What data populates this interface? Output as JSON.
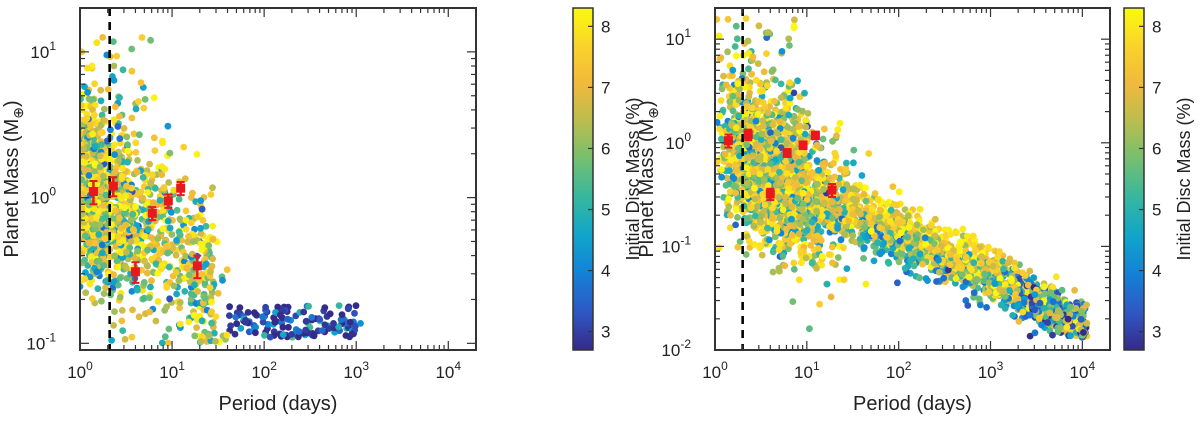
{
  "colors": {
    "axis": "#333333",
    "marker": "#e8191c",
    "cutoff_line": "#000000",
    "colormap": [
      "#352a87",
      "#2f58c4",
      "#1481d6",
      "#10a5ca",
      "#35b7a0",
      "#73bf71",
      "#b9bd4f",
      "#f0b93c",
      "#fad32a",
      "#f9fb0e"
    ]
  },
  "chart_data": [
    {
      "type": "scatter",
      "title": "",
      "xlabel": "Period (days)",
      "ylabel": {
        "base": "Planet Mass (M",
        "sub": "⊕",
        "close": ")"
      },
      "xscale": "log",
      "yscale": "log",
      "xlim": [
        1,
        20000
      ],
      "ylim": [
        0.09,
        20
      ],
      "xticks": [
        1,
        10,
        100,
        1000,
        10000
      ],
      "xtick_labels": [
        {
          "base": "10",
          "exp": "0"
        },
        {
          "base": "10",
          "exp": "1"
        },
        {
          "base": "10",
          "exp": "2"
        },
        {
          "base": "10",
          "exp": "3"
        },
        {
          "base": "10",
          "exp": "4"
        }
      ],
      "yticks": [
        0.1,
        1,
        10
      ],
      "ytick_labels": [
        {
          "base": "10",
          "exp": "-1"
        },
        {
          "base": "10",
          "exp": "0"
        },
        {
          "base": "10",
          "exp": "1"
        }
      ],
      "cutoff_period": 2.1,
      "colorbar": {
        "label": "Initial Disc Mass (%)",
        "range": [
          2.7,
          8.3
        ],
        "ticks": [
          3,
          4,
          5,
          6,
          7,
          8
        ],
        "tick_labels": [
          "3",
          "4",
          "5",
          "6",
          "7",
          "8"
        ]
      },
      "observed": [
        {
          "period": 1.4,
          "mass": 1.1,
          "err": 0.2
        },
        {
          "period": 2.3,
          "mass": 1.2,
          "err": 0.18
        },
        {
          "period": 4.0,
          "mass": 0.31,
          "err": 0.05
        },
        {
          "period": 6.1,
          "mass": 0.78,
          "err": 0.08
        },
        {
          "period": 9.1,
          "mass": 0.95,
          "err": 0.1
        },
        {
          "period": 12.4,
          "mass": 1.16,
          "err": 0.12
        },
        {
          "period": 18.8,
          "mass": 0.34,
          "err": 0.06
        }
      ],
      "population": {
        "n_points": 1500,
        "description": "simulated planets clustered at short periods, mass declining with period out to ~1000 days"
      }
    },
    {
      "type": "scatter",
      "title": "",
      "xlabel": "Period (days)",
      "ylabel": {
        "base": "Planet Mass (M",
        "sub": "⊕",
        "close": ")"
      },
      "xscale": "log",
      "yscale": "log",
      "xlim": [
        1,
        20000
      ],
      "ylim": [
        0.01,
        20
      ],
      "xticks": [
        1,
        10,
        100,
        1000,
        10000
      ],
      "xtick_labels": [
        {
          "base": "10",
          "exp": "0"
        },
        {
          "base": "10",
          "exp": "1"
        },
        {
          "base": "10",
          "exp": "2"
        },
        {
          "base": "10",
          "exp": "3"
        },
        {
          "base": "10",
          "exp": "4"
        }
      ],
      "yticks": [
        0.01,
        0.1,
        1,
        10
      ],
      "ytick_labels": [
        {
          "base": "10",
          "exp": "-2"
        },
        {
          "base": "10",
          "exp": "-1"
        },
        {
          "base": "10",
          "exp": "0"
        },
        {
          "base": "10",
          "exp": "1"
        }
      ],
      "cutoff_period": 2.0,
      "colorbar": {
        "label": "Initial Disc Mass (%)",
        "range": [
          2.7,
          8.3
        ],
        "ticks": [
          3,
          4,
          5,
          6,
          7,
          8
        ],
        "tick_labels": [
          "3",
          "4",
          "5",
          "6",
          "7",
          "8"
        ]
      },
      "observed": [
        {
          "period": 1.4,
          "mass": 1.05,
          "err": 0.15
        },
        {
          "period": 2.3,
          "mass": 1.2,
          "err": 0.14
        },
        {
          "period": 4.0,
          "mass": 0.32,
          "err": 0.04
        },
        {
          "period": 6.1,
          "mass": 0.8,
          "err": 0.07
        },
        {
          "period": 9.1,
          "mass": 0.95,
          "err": 0.08
        },
        {
          "period": 12.4,
          "mass": 1.18,
          "err": 0.1
        },
        {
          "period": 18.8,
          "mass": 0.35,
          "err": 0.05
        }
      ],
      "population": {
        "n_points": 3600,
        "description": "dense simulated population at short periods plus a broad band sweeping from ~0.15 Earth masses at 100 days down to ~0.02 at 10^4 days"
      }
    }
  ]
}
